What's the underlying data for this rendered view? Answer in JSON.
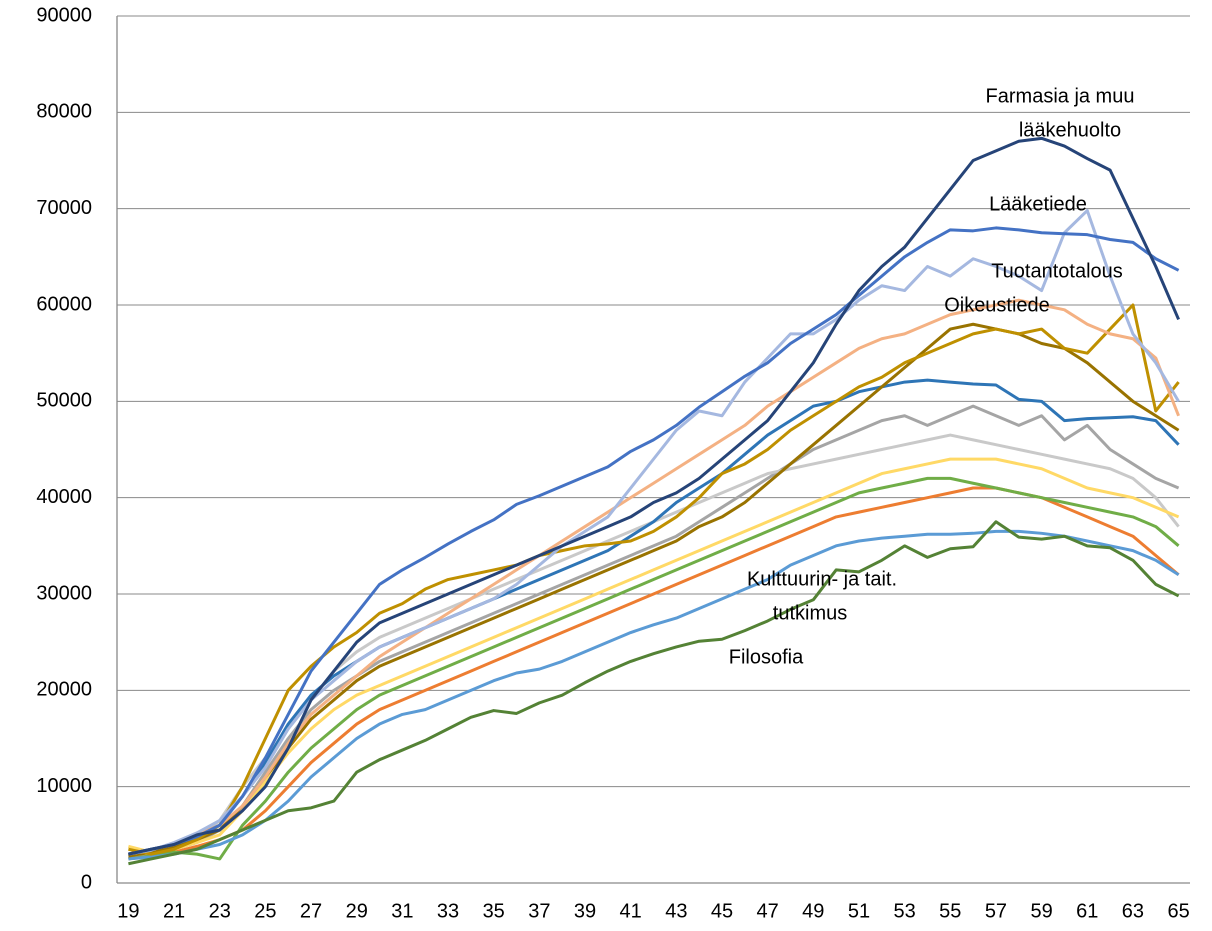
{
  "chart_data": {
    "type": "line",
    "categories": [
      19,
      null,
      21,
      null,
      23,
      null,
      25,
      null,
      27,
      null,
      29,
      null,
      31,
      null,
      33,
      null,
      35,
      null,
      37,
      null,
      39,
      null,
      41,
      null,
      43,
      null,
      45,
      null,
      47,
      null,
      49,
      null,
      51,
      null,
      53,
      null,
      55,
      null,
      57,
      null,
      59,
      null,
      61,
      null,
      63,
      null,
      65
    ],
    "ylim": [
      0,
      90000
    ],
    "yticks": [
      0,
      10000,
      20000,
      30000,
      40000,
      50000,
      60000,
      70000,
      80000,
      90000
    ],
    "grid": true,
    "annotations": [
      "Farmasia ja muu",
      "lääkehuolto",
      "Lääketiede",
      "Tuotantotalous",
      "Oikeustiede",
      "Kulttuurin- ja tait.",
      "tutkimus",
      "Filosofia"
    ],
    "series": [
      {
        "color": "#a5a5a5",
        "values": [
          2800,
          3000,
          3500,
          4200,
          5500,
          8000,
          11500,
          15000,
          18000,
          20000,
          21500,
          23000,
          24000,
          25000,
          26000,
          27000,
          28000,
          29000,
          30000,
          31000,
          32000,
          33000,
          34000,
          35000,
          36000,
          37500,
          39000,
          40500,
          42000,
          43500,
          45000,
          46000,
          47000,
          48000,
          48500,
          47500,
          48500,
          49500,
          48500,
          47500,
          48500,
          46000,
          47500,
          45000,
          43500,
          42000,
          41000
        ]
      },
      {
        "color": "#c9c9c9",
        "values": [
          3000,
          3300,
          3800,
          4500,
          6500,
          10000,
          13000,
          16000,
          19000,
          22000,
          24000,
          25500,
          26500,
          27500,
          28500,
          29500,
          30500,
          31500,
          32500,
          33500,
          34500,
          35500,
          36500,
          37500,
          38500,
          39500,
          40500,
          41500,
          42500,
          43000,
          43500,
          44000,
          44500,
          45000,
          45500,
          46000,
          46500,
          46000,
          45500,
          45000,
          44500,
          44000,
          43500,
          43000,
          42000,
          40000,
          37000
        ]
      },
      {
        "color": "#ed7d31",
        "values": [
          2500,
          2800,
          3200,
          3800,
          4500,
          5500,
          7500,
          10000,
          12500,
          14500,
          16500,
          18000,
          19000,
          20000,
          21000,
          22000,
          23000,
          24000,
          25000,
          26000,
          27000,
          28000,
          29000,
          30000,
          31000,
          32000,
          33000,
          34000,
          35000,
          36000,
          37000,
          38000,
          38500,
          39000,
          39500,
          40000,
          40500,
          41000,
          41000,
          40500,
          40000,
          39000,
          38000,
          37000,
          36000,
          34000,
          32000
        ]
      },
      {
        "color": "#ffd966",
        "values": [
          3800,
          3200,
          3500,
          4200,
          5000,
          7500,
          10500,
          13500,
          16000,
          18000,
          19500,
          20500,
          21500,
          22500,
          23500,
          24500,
          25500,
          26500,
          27500,
          28500,
          29500,
          30500,
          31500,
          32500,
          33500,
          34500,
          35500,
          36500,
          37500,
          38500,
          39500,
          40500,
          41500,
          42500,
          43000,
          43500,
          44000,
          44000,
          44000,
          43500,
          43000,
          42000,
          41000,
          40500,
          40000,
          39000,
          38000
        ]
      },
      {
        "color": "#70ad47",
        "values": [
          2500,
          2800,
          3200,
          3000,
          2500,
          6000,
          8500,
          11500,
          14000,
          16000,
          18000,
          19500,
          20500,
          21500,
          22500,
          23500,
          24500,
          25500,
          26500,
          27500,
          28500,
          29500,
          30500,
          31500,
          32500,
          33500,
          34500,
          35500,
          36500,
          37500,
          38500,
          39500,
          40500,
          41000,
          41500,
          42000,
          42000,
          41500,
          41000,
          40500,
          40000,
          39500,
          39000,
          38500,
          38000,
          37000,
          35000
        ]
      },
      {
        "color": "#5b9bd5",
        "values": [
          2500,
          2700,
          3000,
          3500,
          4000,
          5000,
          6500,
          8500,
          11000,
          13000,
          15000,
          16500,
          17500,
          18000,
          19000,
          20000,
          21000,
          21800,
          22200,
          23000,
          24000,
          25000,
          26000,
          26800,
          27500,
          28500,
          29500,
          30500,
          31500,
          33000,
          34000,
          35000,
          35500,
          35800,
          36000,
          36200,
          36200,
          36300,
          36500,
          36500,
          36300,
          36000,
          35500,
          35000,
          34500,
          33500,
          32000
        ]
      },
      {
        "color": "#548235",
        "values": [
          2000,
          2500,
          3000,
          3500,
          4500,
          5500,
          6500,
          7500,
          7800,
          8500,
          11500,
          12800,
          13800,
          14800,
          16000,
          17200,
          17900,
          17600,
          18700,
          19500,
          20800,
          22000,
          23000,
          23800,
          24500,
          25100,
          25300,
          26200,
          27200,
          28400,
          29400,
          32500,
          32300,
          33500,
          35000,
          33800,
          34700,
          34900,
          37500,
          35900,
          35700,
          36000,
          35000,
          34800,
          33500,
          31000,
          29800
        ]
      },
      {
        "color": "#2e75b6",
        "values": [
          3000,
          3500,
          4000,
          5000,
          6000,
          9000,
          12500,
          16500,
          19500,
          21500,
          23000,
          24500,
          25500,
          26500,
          27500,
          28500,
          29500,
          30500,
          31500,
          32500,
          33500,
          34500,
          36000,
          37500,
          39500,
          41000,
          42500,
          44500,
          46500,
          48000,
          49500,
          50000,
          51000,
          51500,
          52000,
          52200,
          52000,
          51800,
          51700,
          50200,
          50000,
          48000,
          48200,
          48300,
          48400,
          48000,
          45500
        ]
      },
      {
        "color": "#997300",
        "values": [
          2800,
          3200,
          3800,
          4500,
          5500,
          8000,
          11000,
          14000,
          17000,
          19000,
          21000,
          22500,
          23500,
          24500,
          25500,
          26500,
          27500,
          28500,
          29500,
          30500,
          31500,
          32500,
          33500,
          34500,
          35500,
          37000,
          38000,
          39500,
          41500,
          43500,
          45500,
          47500,
          49500,
          51500,
          53500,
          55500,
          57500,
          58000,
          57500,
          57000,
          56000,
          55500,
          54000,
          52000,
          50000,
          48500,
          47000
        ]
      },
      {
        "color": "#bf9000",
        "values": [
          3500,
          3000,
          3500,
          4500,
          6000,
          10000,
          15000,
          20000,
          22500,
          24500,
          26000,
          28000,
          29000,
          30500,
          31500,
          32000,
          32500,
          33000,
          34000,
          34500,
          35000,
          35200,
          35500,
          36500,
          38000,
          40000,
          42500,
          43500,
          45000,
          47000,
          48500,
          50000,
          51500,
          52500,
          54000,
          55000,
          56000,
          57000,
          57500,
          57000,
          57500,
          55500,
          55000,
          57500,
          60000,
          49000,
          52000
        ]
      },
      {
        "color": "#f4b183",
        "values": [
          3000,
          3500,
          4000,
          5000,
          6000,
          8000,
          11000,
          14500,
          17500,
          19500,
          21500,
          23500,
          25000,
          26500,
          28000,
          29500,
          31000,
          32500,
          34000,
          35500,
          37000,
          38500,
          40000,
          41500,
          43000,
          44500,
          46000,
          47500,
          49500,
          51000,
          52500,
          54000,
          55500,
          56500,
          57000,
          58000,
          59000,
          59500,
          60000,
          60500,
          60000,
          59500,
          58000,
          57000,
          56500,
          54500,
          48500
        ]
      },
      {
        "color": "#a5b8e0",
        "values": [
          3000,
          3400,
          4200,
          5200,
          6500,
          9000,
          12000,
          16000,
          19000,
          21000,
          23000,
          24500,
          25500,
          26500,
          27500,
          28500,
          29500,
          31000,
          33000,
          35000,
          36500,
          38000,
          41000,
          44000,
          47000,
          49000,
          48500,
          52000,
          54500,
          57000,
          57000,
          58500,
          60500,
          62000,
          61500,
          64000,
          63000,
          64800,
          64000,
          63000,
          61500,
          67500,
          69800,
          63000,
          57000,
          54000,
          50000
        ]
      },
      {
        "color": "#4472c4",
        "values": [
          3000,
          3500,
          4000,
          4800,
          6000,
          9000,
          13000,
          17500,
          22000,
          25000,
          28000,
          31000,
          32500,
          33800,
          35200,
          36500,
          37700,
          39300,
          40200,
          41200,
          42200,
          43200,
          44800,
          46000,
          47500,
          49400,
          51000,
          52600,
          54000,
          56000,
          57500,
          59000,
          61000,
          63000,
          65000,
          66500,
          67800,
          67700,
          68000,
          67800,
          67500,
          67400,
          67300,
          66800,
          66500,
          64800,
          63600
        ]
      },
      {
        "color": "#264478",
        "values": [
          3000,
          3500,
          4000,
          5000,
          5500,
          7500,
          10000,
          14000,
          19000,
          22000,
          25000,
          27000,
          28000,
          29000,
          30000,
          31000,
          32000,
          33000,
          34000,
          35000,
          36000,
          37000,
          38000,
          39500,
          40500,
          42000,
          44000,
          46000,
          48000,
          51000,
          54000,
          58000,
          61500,
          64000,
          66000,
          69000,
          72000,
          75000,
          76000,
          77000,
          77300,
          76500,
          75200,
          74000,
          69000,
          64000,
          58500
        ]
      }
    ]
  }
}
